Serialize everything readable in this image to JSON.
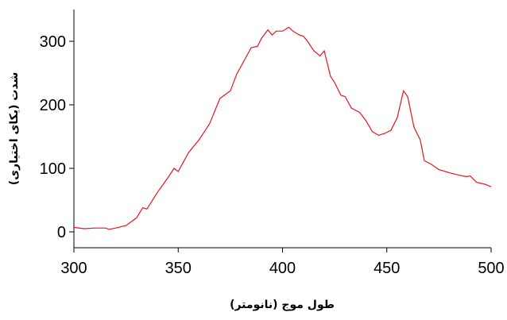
{
  "chart_data": {
    "type": "line",
    "x_label": "طول موج (نانومتر)",
    "y_label": "شدت (یکای اختیاری)",
    "x": [
      300,
      305,
      310,
      315,
      317,
      320,
      325,
      330,
      333,
      335,
      340,
      345,
      348,
      350,
      355,
      360,
      365,
      370,
      375,
      378,
      380,
      385,
      388,
      390,
      393,
      395,
      397,
      400,
      403,
      405,
      408,
      410,
      412,
      415,
      418,
      420,
      423,
      425,
      428,
      430,
      433,
      437,
      440,
      443,
      446,
      449,
      452,
      455,
      458,
      460,
      463,
      466,
      468,
      471,
      475,
      480,
      485,
      488,
      490,
      493,
      497,
      500
    ],
    "series": [
      {
        "color": "#e8141e",
        "values": [
          7,
          5,
          6,
          6,
          4,
          6,
          10,
          22,
          38,
          36,
          62,
          85,
          100,
          95,
          125,
          145,
          170,
          210,
          222,
          248,
          260,
          290,
          292,
          305,
          318,
          310,
          316,
          316,
          322,
          316,
          310,
          308,
          300,
          285,
          277,
          285,
          245,
          235,
          215,
          213,
          195,
          188,
          175,
          158,
          152,
          155,
          160,
          180,
          222,
          213,
          165,
          145,
          112,
          107,
          98,
          93,
          89,
          87,
          88,
          78,
          75,
          71
        ]
      }
    ],
    "xlim": [
      300,
      500
    ],
    "xticks": [
      300,
      350,
      400,
      450,
      500
    ],
    "ylim": [
      -25,
      350
    ],
    "yticks": [
      0,
      100,
      200,
      300
    ]
  }
}
